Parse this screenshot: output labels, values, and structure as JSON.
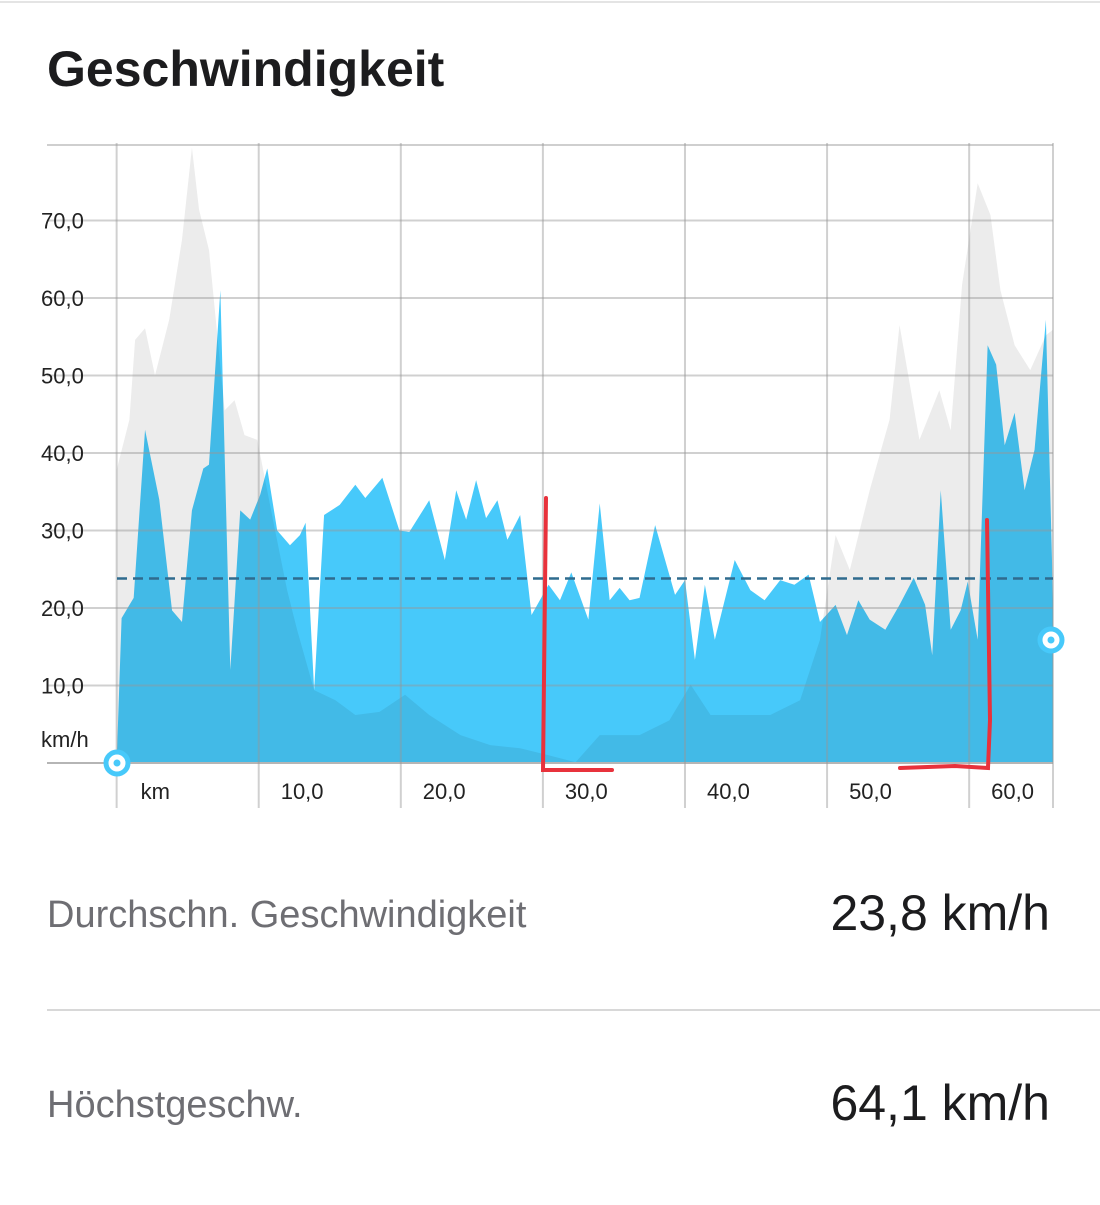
{
  "title": "Geschwindigkeit",
  "chart_data": {
    "type": "area",
    "xlim": [
      -4.9,
      65.9
    ],
    "ylim": [
      0,
      80
    ],
    "xticks": [
      {
        "value": 0,
        "label": "km"
      },
      {
        "value": 10,
        "label": "10,0"
      },
      {
        "value": 20,
        "label": "20,0"
      },
      {
        "value": 30,
        "label": "30,0"
      },
      {
        "value": 40,
        "label": "40,0"
      },
      {
        "value": 50,
        "label": "50,0"
      },
      {
        "value": 60,
        "label": "60,0"
      }
    ],
    "yticks": [
      {
        "value": 0,
        "label": "km/h"
      },
      {
        "value": 10,
        "label": "10,0"
      },
      {
        "value": 20,
        "label": "20,0"
      },
      {
        "value": 30,
        "label": "30,0"
      },
      {
        "value": 40,
        "label": "40,0"
      },
      {
        "value": 50,
        "label": "50,0"
      },
      {
        "value": 60,
        "label": "60,0"
      },
      {
        "value": 70,
        "label": "70,0"
      }
    ],
    "grid": true,
    "average_line": 23.8,
    "series": [
      {
        "color": "#47c9fa",
        "x": [
          0,
          0.35,
          1.2,
          2.0,
          3.0,
          3.9,
          4.6,
          5.3,
          6.1,
          6.5,
          7.3,
          8.0,
          8.7,
          9.4,
          10.1,
          10.6,
          11.3,
          12.2,
          12.9,
          13.3,
          13.9,
          14.6,
          15.7,
          16.8,
          17.5,
          18.7,
          19.9,
          20.6,
          22.0,
          23.1,
          23.9,
          24.6,
          25.3,
          26.0,
          26.8,
          27.5,
          28.4,
          29.2,
          30.4,
          31.2,
          32.0,
          33.2,
          34.0,
          34.7,
          35.4,
          36.1,
          36.8,
          37.9,
          39.3,
          40.0,
          40.7,
          41.4,
          42.1,
          43.5,
          44.6,
          45.6,
          46.7,
          47.7,
          48.7,
          49.5,
          50.6,
          51.4,
          52.2,
          53.0,
          54.1,
          55.1,
          56.1,
          56.9,
          57.4,
          58.0,
          58.7,
          59.4,
          59.9,
          60.6,
          61.3,
          61.9,
          62.5,
          63.2,
          63.9,
          64.6,
          65.4,
          65.9
        ],
        "values": [
          0,
          18.7,
          21.3,
          43,
          34,
          19.7,
          18.2,
          32.6,
          38,
          38.5,
          61,
          12,
          32.6,
          31.4,
          34.6,
          38,
          30,
          28.1,
          29.4,
          31,
          9.4,
          32,
          33.3,
          35.9,
          34.2,
          36.8,
          30,
          29.8,
          33.9,
          26.2,
          35.2,
          31.4,
          36.5,
          31.6,
          33.9,
          28.8,
          32,
          19.1,
          23,
          21,
          24.6,
          18.5,
          33.5,
          21,
          22.6,
          21,
          21.3,
          30.7,
          21.7,
          23.6,
          13.3,
          23,
          15.9,
          26.2,
          22.3,
          21,
          23.6,
          23,
          24.3,
          18.2,
          20.4,
          16.5,
          21,
          18.5,
          17.2,
          20.4,
          23.9,
          20.4,
          13.9,
          35.2,
          17.2,
          19.7,
          23.4,
          15.9,
          53.9,
          51.4,
          41,
          45.2,
          35.2,
          40.4,
          57.2,
          21
        ]
      },
      {
        "color": "#ececec",
        "x": [
          0,
          0.9,
          1.3,
          2.0,
          2.7,
          3.7,
          4.6,
          5.3,
          5.8,
          6.5,
          7.6,
          8.3,
          9.0,
          9.9,
          11.0,
          12.0,
          12.7,
          13.9,
          15.4,
          16.8,
          18.5,
          20.3,
          22.0,
          24.2,
          26.3,
          28.4,
          30.4,
          32.3,
          34.0,
          36.8,
          38.9,
          40.4,
          41.8,
          43.9,
          46.0,
          48.1,
          49.5,
          50.6,
          51.6,
          53.0,
          54.4,
          55.1,
          56.5,
          57.9,
          58.7,
          59.5,
          60.6,
          61.5,
          62.2,
          63.2,
          64.3,
          65.4,
          65.9
        ],
        "values": [
          37.8,
          44.3,
          54.6,
          56.1,
          50,
          57.2,
          67.5,
          79.4,
          71.4,
          66.2,
          45.5,
          46.8,
          42.3,
          41.7,
          31.4,
          22.3,
          17.2,
          9.4,
          8.1,
          6.2,
          6.6,
          8.8,
          6.2,
          3.6,
          2.3,
          1.9,
          1.0,
          0.1,
          3.6,
          3.6,
          5.5,
          10.1,
          6.2,
          6.2,
          6.2,
          8.1,
          15.9,
          29.4,
          24.9,
          35.2,
          44.3,
          56.5,
          41.7,
          48.1,
          42.9,
          61.7,
          74.8,
          70.7,
          61,
          53.9,
          50.7,
          55.2,
          55.9
        ]
      }
    ]
  },
  "stats": [
    {
      "label": "Durchschn. Geschwindigkeit",
      "value": "23,8 km/h"
    },
    {
      "label": "Höchstgeschw.",
      "value": "64,1 km/h"
    }
  ]
}
